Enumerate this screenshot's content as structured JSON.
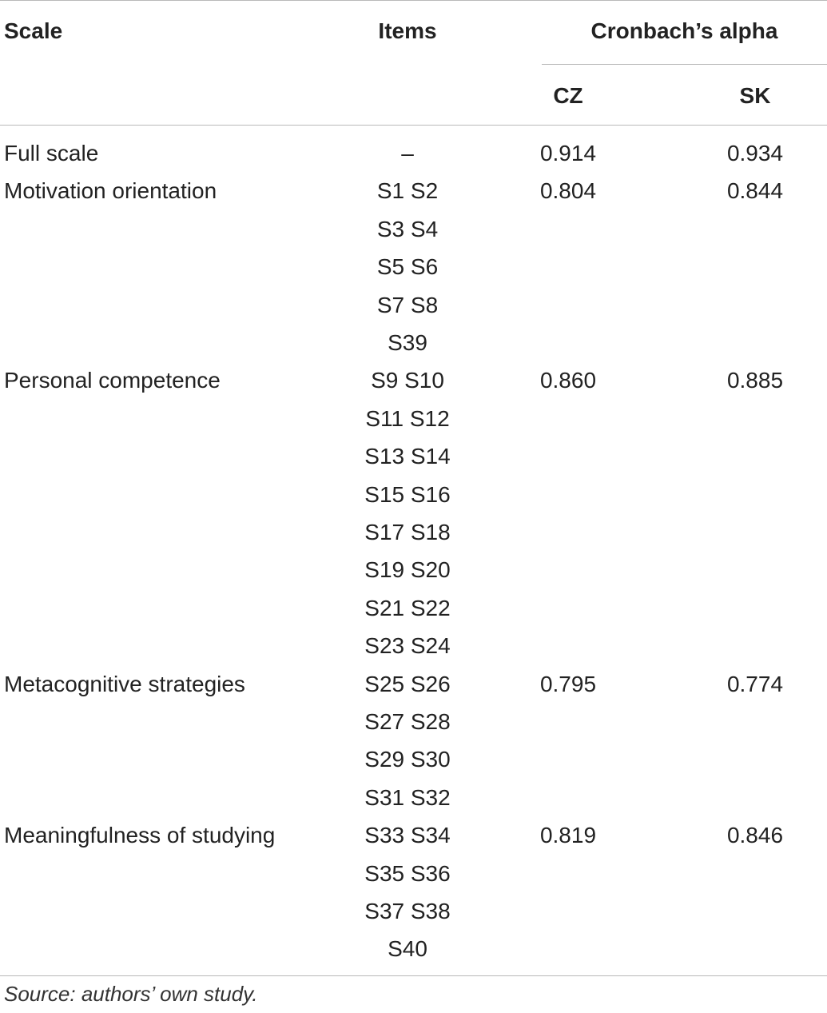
{
  "table": {
    "headers": {
      "scale": "Scale",
      "items": "Items",
      "alpha": "Cronbach’s alpha",
      "cz": "CZ",
      "sk": "SK"
    },
    "rows": [
      {
        "scale": "Full scale",
        "items": [
          "–"
        ],
        "cz": "0.914",
        "sk": "0.934"
      },
      {
        "scale": "Motivation orientation",
        "items": [
          "S1 S2",
          "S3 S4",
          "S5 S6",
          "S7 S8",
          "S39"
        ],
        "cz": "0.804",
        "sk": "0.844"
      },
      {
        "scale": "Personal competence",
        "items": [
          "S9 S10",
          "S11 S12",
          "S13 S14",
          "S15 S16",
          "S17 S18",
          "S19 S20",
          "S21 S22",
          "S23 S24"
        ],
        "cz": "0.860",
        "sk": "0.885"
      },
      {
        "scale": "Metacognitive strategies",
        "items": [
          "S25 S26",
          "S27 S28",
          "S29 S30",
          "S31 S32"
        ],
        "cz": "0.795",
        "sk": "0.774"
      },
      {
        "scale": "Meaningfulness of studying",
        "items": [
          "S33 S34",
          "S35 S36",
          "S37 S38",
          "S40"
        ],
        "cz": "0.819",
        "sk": "0.846"
      }
    ]
  },
  "footnote": "Source: authors’ own study."
}
